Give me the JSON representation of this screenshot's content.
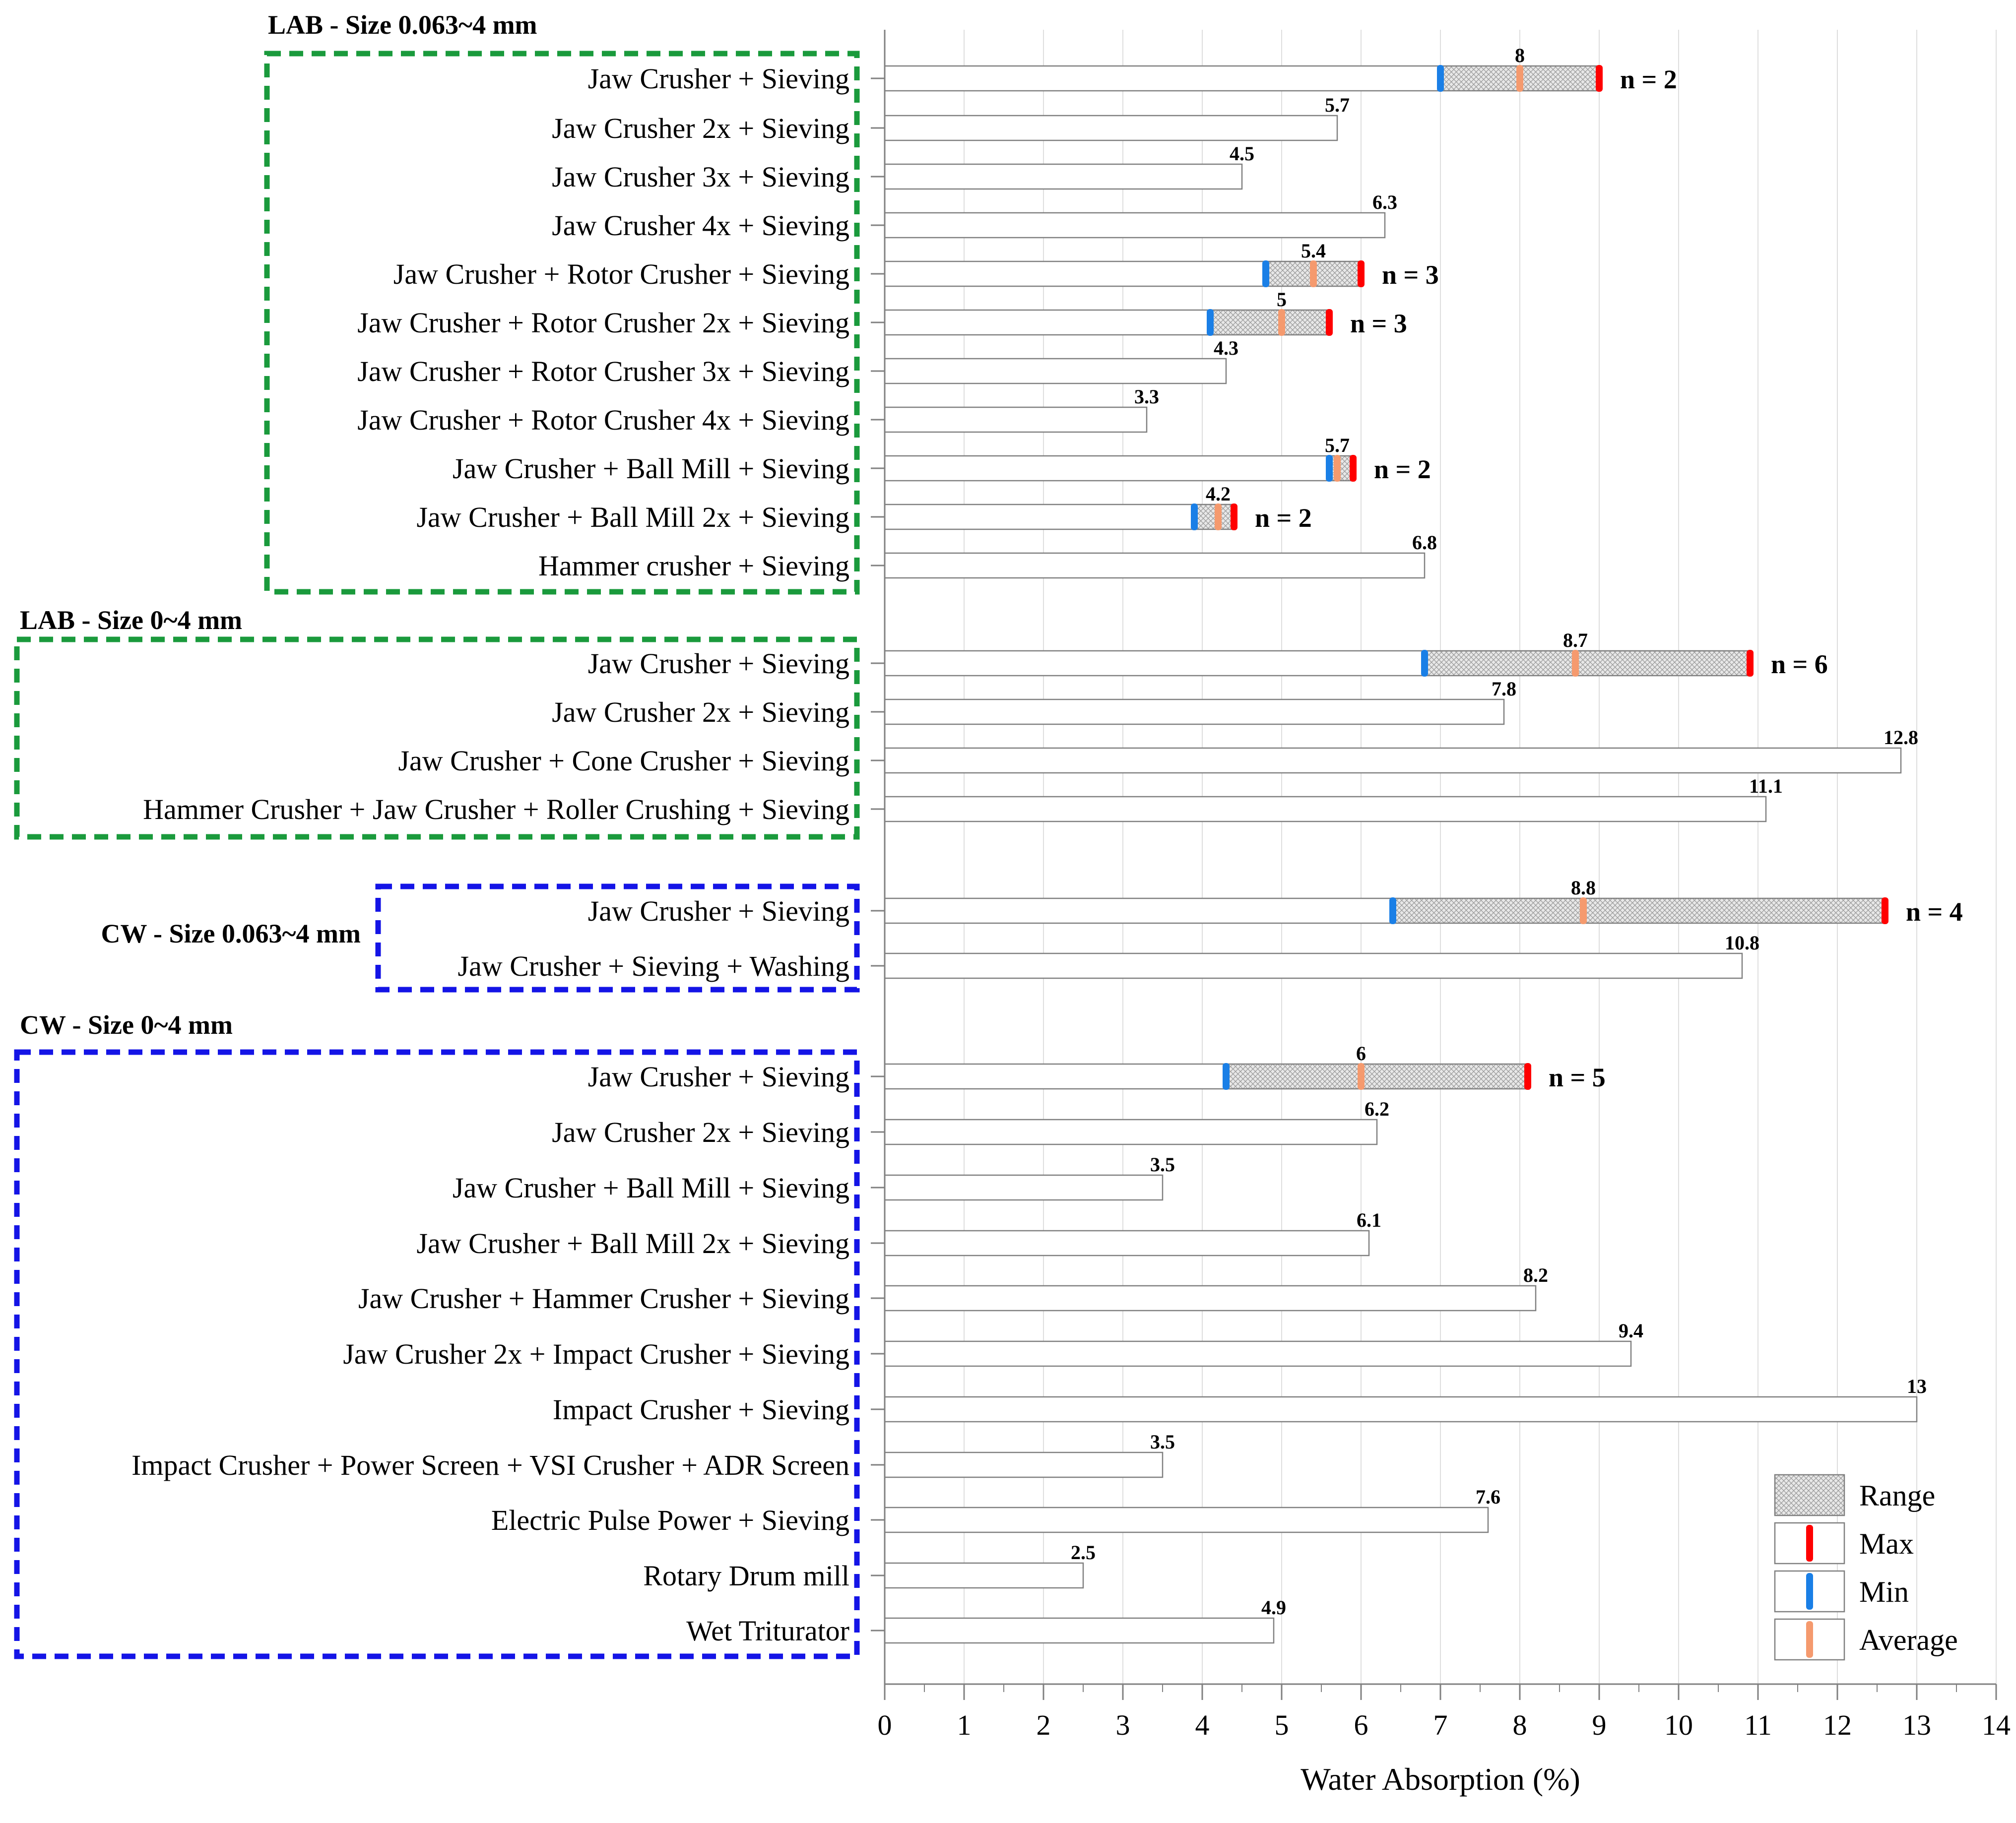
{
  "chart_data": {
    "type": "bar",
    "orientation": "horizontal",
    "xlabel": "Water Absorption (%)",
    "xlim": [
      0,
      14
    ],
    "xticks": [
      0,
      1,
      2,
      3,
      4,
      5,
      6,
      7,
      8,
      9,
      10,
      11,
      12,
      13,
      14
    ],
    "grid": true,
    "legend": {
      "position": "bottom-right",
      "entries": [
        {
          "key": "range",
          "label": "Range"
        },
        {
          "key": "max",
          "label": "Max",
          "color": "#ff0000"
        },
        {
          "key": "min",
          "label": "Min",
          "color": "#1a7fe6"
        },
        {
          "key": "avg",
          "label": "Average",
          "color": "#f59a6e"
        }
      ]
    },
    "groups": [
      {
        "title": "LAB - Size 0.063~4 mm",
        "box_color": "#1a9a3c",
        "items": [
          {
            "label": "Jaw Crusher + Sieving",
            "value": 8,
            "value_label": "8",
            "min": 7.0,
            "max": 9.0,
            "n": "n = 2"
          },
          {
            "label": "Jaw Crusher 2x + Sieving",
            "value": 5.7,
            "value_label": "5.7"
          },
          {
            "label": "Jaw Crusher 3x + Sieving",
            "value": 4.5,
            "value_label": "4.5"
          },
          {
            "label": "Jaw Crusher 4x + Sieving",
            "value": 6.3,
            "value_label": "6.3"
          },
          {
            "label": "Jaw Crusher + Rotor Crusher + Sieving",
            "value": 5.4,
            "value_label": "5.4",
            "min": 4.8,
            "max": 6.0,
            "n": "n = 3"
          },
          {
            "label": "Jaw Crusher + Rotor Crusher 2x + Sieving",
            "value": 5,
            "value_label": "5",
            "min": 4.1,
            "max": 5.6,
            "n": "n = 3"
          },
          {
            "label": "Jaw Crusher + Rotor Crusher 3x + Sieving",
            "value": 4.3,
            "value_label": "4.3"
          },
          {
            "label": "Jaw Crusher + Rotor Crusher 4x + Sieving",
            "value": 3.3,
            "value_label": "3.3"
          },
          {
            "label": "Jaw Crusher + Ball Mill + Sieving",
            "value": 5.7,
            "value_label": "5.7",
            "min": 5.6,
            "max": 5.9,
            "n": "n = 2"
          },
          {
            "label": "Jaw Crusher + Ball Mill 2x + Sieving",
            "value": 4.2,
            "value_label": "4.2",
            "min": 3.9,
            "max": 4.4,
            "n": "n = 2"
          },
          {
            "label": "Hammer crusher + Sieving",
            "value": 6.8,
            "value_label": "6.8"
          }
        ]
      },
      {
        "title": "LAB - Size 0~4 mm",
        "box_color": "#1a9a3c",
        "items": [
          {
            "label": "Jaw Crusher + Sieving",
            "value": 8.7,
            "value_label": "8.7",
            "min": 6.8,
            "max": 10.9,
            "n": "n = 6"
          },
          {
            "label": "Jaw Crusher 2x + Sieving",
            "value": 7.8,
            "value_label": "7.8"
          },
          {
            "label": "Jaw Crusher + Cone Crusher + Sieving",
            "value": 12.8,
            "value_label": "12.8"
          },
          {
            "label": "Hammer Crusher + Jaw Crusher + Roller Crushing + Sieving",
            "value": 11.1,
            "value_label": "11.1"
          }
        ]
      },
      {
        "title": "CW - Size 0.063~4 mm",
        "box_color": "#1414e6",
        "items": [
          {
            "label": "Jaw Crusher + Sieving",
            "value": 8.8,
            "value_label": "8.8",
            "min": 6.4,
            "max": 12.6,
            "n": "n = 4"
          },
          {
            "label": "Jaw Crusher + Sieving + Washing",
            "value": 10.8,
            "value_label": "10.8"
          }
        ]
      },
      {
        "title": "CW - Size 0~4 mm",
        "box_color": "#1414e6",
        "items": [
          {
            "label": "Jaw Crusher + Sieving",
            "value": 6,
            "value_label": "6",
            "min": 4.3,
            "max": 8.1,
            "n": "n = 5"
          },
          {
            "label": "Jaw Crusher 2x + Sieving",
            "value": 6.2,
            "value_label": "6.2"
          },
          {
            "label": "Jaw Crusher + Ball Mill + Sieving",
            "value": 3.5,
            "value_label": "3.5"
          },
          {
            "label": "Jaw Crusher + Ball Mill 2x + Sieving",
            "value": 6.1,
            "value_label": "6.1"
          },
          {
            "label": "Jaw Crusher + Hammer Crusher + Sieving",
            "value": 8.2,
            "value_label": "8.2"
          },
          {
            "label": "Jaw Crusher 2x + Impact Crusher + Sieving",
            "value": 9.4,
            "value_label": "9.4"
          },
          {
            "label": "Impact Crusher + Sieving",
            "value": 13,
            "value_label": "13"
          },
          {
            "label": "Impact Crusher + Power Screen + VSI Crusher + ADR Screen",
            "value": 3.5,
            "value_label": "3.5"
          },
          {
            "label": "Electric Pulse Power + Sieving",
            "value": 7.6,
            "value_label": "7.6"
          },
          {
            "label": "Rotary Drum mill",
            "value": 2.5,
            "value_label": "2.5"
          },
          {
            "label": "Wet Triturator",
            "value": 4.9,
            "value_label": "4.9"
          }
        ]
      }
    ]
  }
}
